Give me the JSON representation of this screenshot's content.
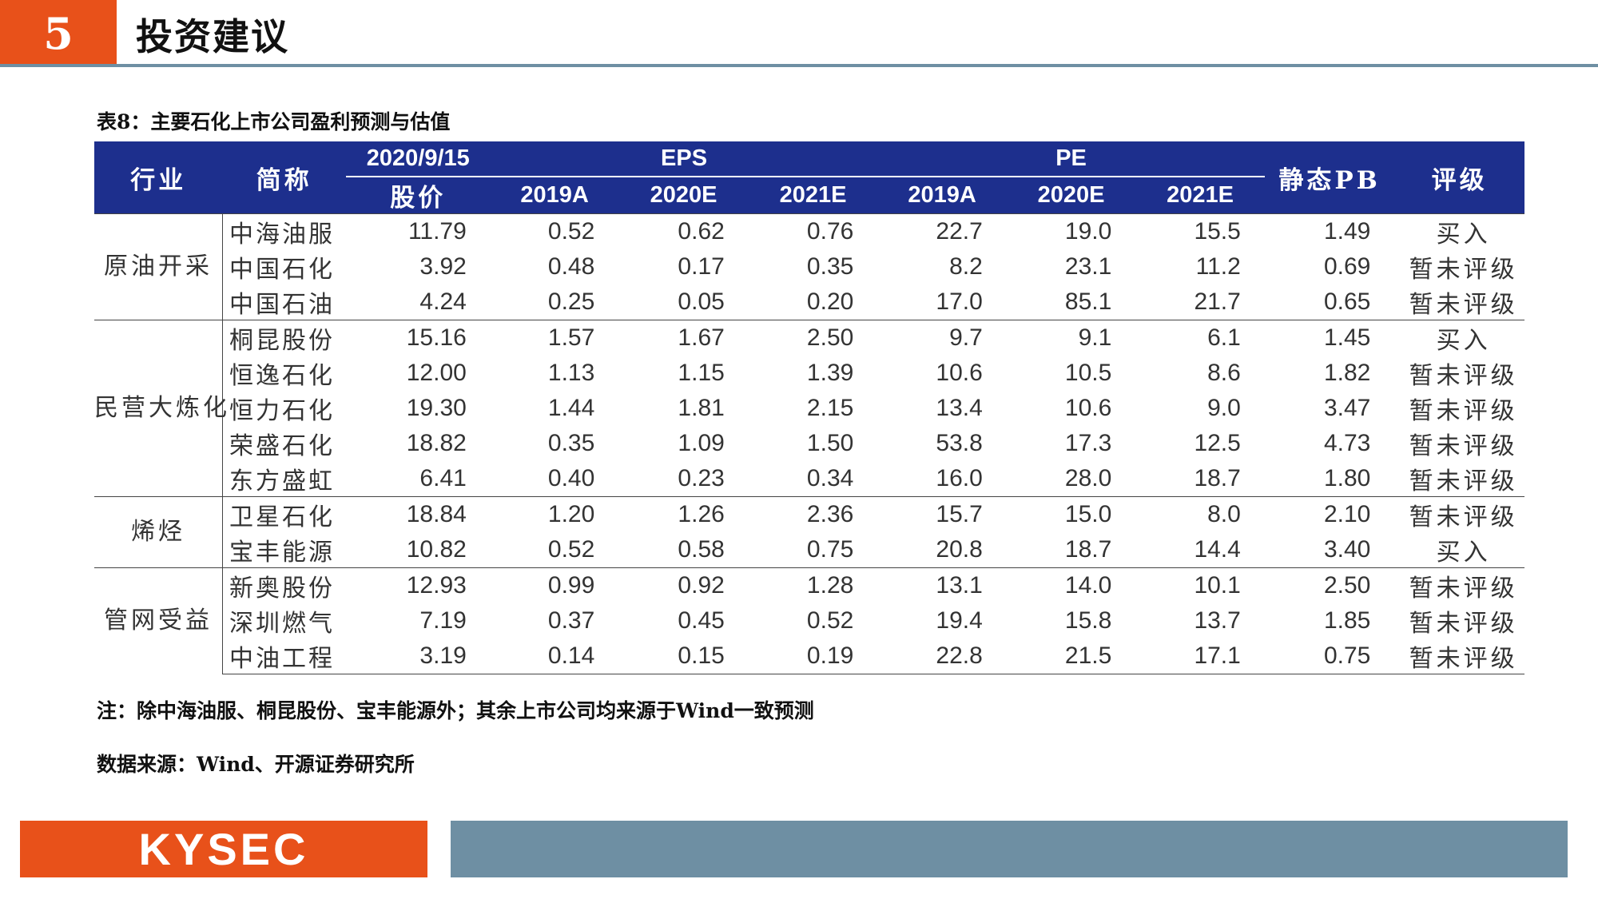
{
  "header": {
    "section_number": "5",
    "title": "投资建议"
  },
  "table": {
    "caption": "表8：主要石化上市公司盈利预测与估值",
    "headers": {
      "industry": "行业",
      "name": "简称",
      "date": "2020/9/15",
      "price": "股价",
      "eps": "EPS",
      "pe": "PE",
      "pb": "静态PB",
      "rating": "评级",
      "eps_years": [
        "2019A",
        "2020E",
        "2021E"
      ],
      "pe_years": [
        "2019A",
        "2020E",
        "2021E"
      ]
    },
    "groups": [
      {
        "industry": "原油开采",
        "rows": [
          {
            "name": "中海油服",
            "price": "11.79",
            "eps": [
              "0.52",
              "0.62",
              "0.76"
            ],
            "pe": [
              "22.7",
              "19.0",
              "15.5"
            ],
            "pb": "1.49",
            "rating": "买入"
          },
          {
            "name": "中国石化",
            "price": "3.92",
            "eps": [
              "0.48",
              "0.17",
              "0.35"
            ],
            "pe": [
              "8.2",
              "23.1",
              "11.2"
            ],
            "pb": "0.69",
            "rating": "暂未评级"
          },
          {
            "name": "中国石油",
            "price": "4.24",
            "eps": [
              "0.25",
              "0.05",
              "0.20"
            ],
            "pe": [
              "17.0",
              "85.1",
              "21.7"
            ],
            "pb": "0.65",
            "rating": "暂未评级"
          }
        ]
      },
      {
        "industry": "民营大炼化",
        "rows": [
          {
            "name": "桐昆股份",
            "price": "15.16",
            "eps": [
              "1.57",
              "1.67",
              "2.50"
            ],
            "pe": [
              "9.7",
              "9.1",
              "6.1"
            ],
            "pb": "1.45",
            "rating": "买入"
          },
          {
            "name": "恒逸石化",
            "price": "12.00",
            "eps": [
              "1.13",
              "1.15",
              "1.39"
            ],
            "pe": [
              "10.6",
              "10.5",
              "8.6"
            ],
            "pb": "1.82",
            "rating": "暂未评级"
          },
          {
            "name": "恒力石化",
            "price": "19.30",
            "eps": [
              "1.44",
              "1.81",
              "2.15"
            ],
            "pe": [
              "13.4",
              "10.6",
              "9.0"
            ],
            "pb": "3.47",
            "rating": "暂未评级"
          },
          {
            "name": "荣盛石化",
            "price": "18.82",
            "eps": [
              "0.35",
              "1.09",
              "1.50"
            ],
            "pe": [
              "53.8",
              "17.3",
              "12.5"
            ],
            "pb": "4.73",
            "rating": "暂未评级"
          },
          {
            "name": "东方盛虹",
            "price": "6.41",
            "eps": [
              "0.40",
              "0.23",
              "0.34"
            ],
            "pe": [
              "16.0",
              "28.0",
              "18.7"
            ],
            "pb": "1.80",
            "rating": "暂未评级"
          }
        ]
      },
      {
        "industry": "烯烃",
        "rows": [
          {
            "name": "卫星石化",
            "price": "18.84",
            "eps": [
              "1.20",
              "1.26",
              "2.36"
            ],
            "pe": [
              "15.7",
              "15.0",
              "8.0"
            ],
            "pb": "2.10",
            "rating": "暂未评级"
          },
          {
            "name": "宝丰能源",
            "price": "10.82",
            "eps": [
              "0.52",
              "0.58",
              "0.75"
            ],
            "pe": [
              "20.8",
              "18.7",
              "14.4"
            ],
            "pb": "3.40",
            "rating": "买入"
          }
        ]
      },
      {
        "industry": "管网受益",
        "rows": [
          {
            "name": "新奥股份",
            "price": "12.93",
            "eps": [
              "0.99",
              "0.92",
              "1.28"
            ],
            "pe": [
              "13.1",
              "14.0",
              "10.1"
            ],
            "pb": "2.50",
            "rating": "暂未评级"
          },
          {
            "name": "深圳燃气",
            "price": "7.19",
            "eps": [
              "0.37",
              "0.45",
              "0.52"
            ],
            "pe": [
              "19.4",
              "15.8",
              "13.7"
            ],
            "pb": "1.85",
            "rating": "暂未评级"
          },
          {
            "name": "中油工程",
            "price": "3.19",
            "eps": [
              "0.14",
              "0.15",
              "0.19"
            ],
            "pe": [
              "22.8",
              "21.5",
              "17.1"
            ],
            "pb": "0.75",
            "rating": "暂未评级"
          }
        ]
      }
    ]
  },
  "note": "注：除中海油服、桐昆股份、宝丰能源外；其余上市公司均来源于Wind一致预测",
  "source": "数据来源：Wind、开源证券研究所",
  "footer": {
    "logo_text": "KYSEC"
  },
  "colors": {
    "accent": "#e8511a",
    "header_bg": "#1d2f8d",
    "bar": "#6e8fa3"
  }
}
